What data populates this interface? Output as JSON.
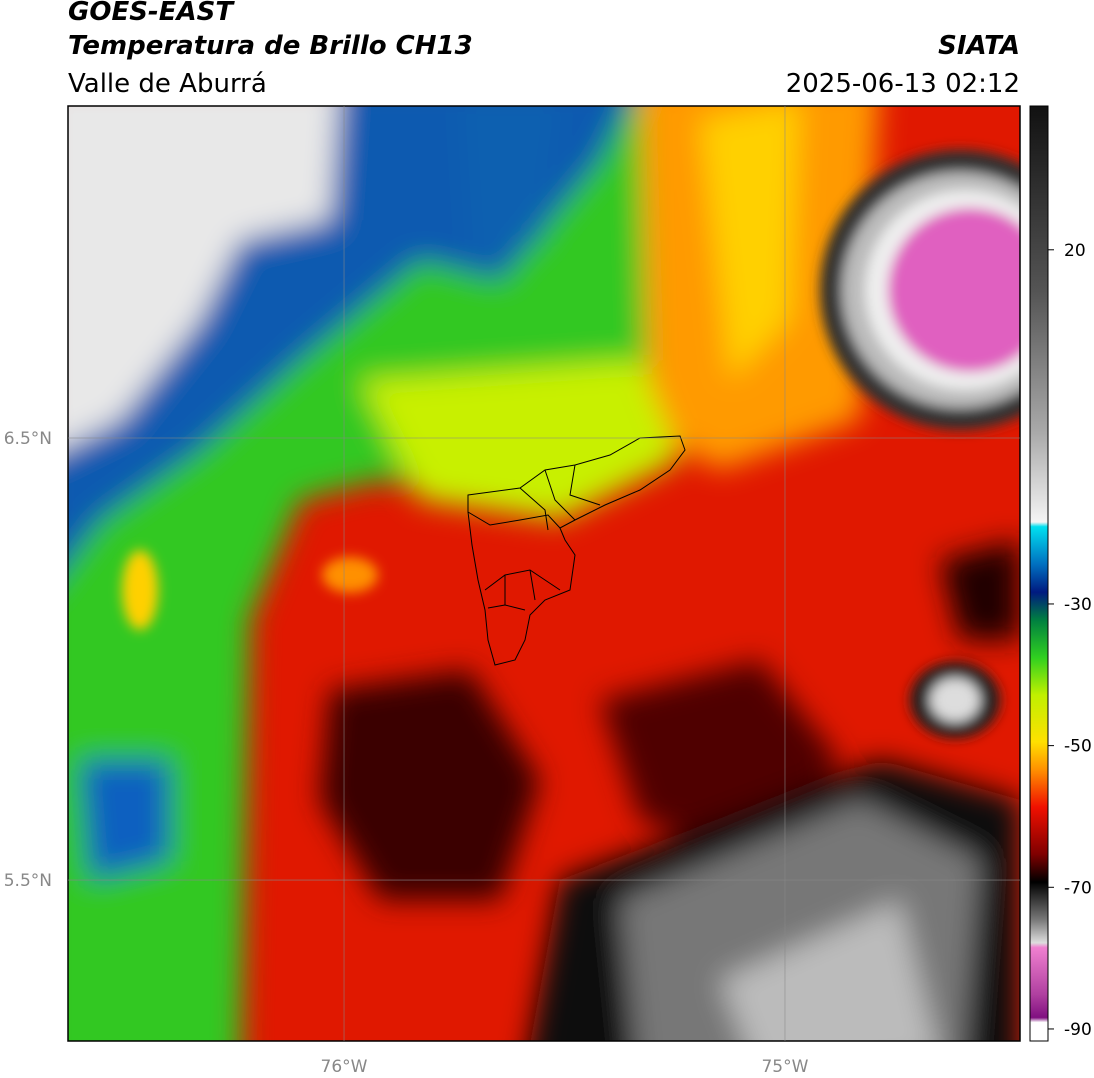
{
  "header": {
    "title": "GOES-EAST",
    "subtitle": "Temperatura de Brillo CH13",
    "region": "Valle de Aburrá",
    "agency": "SIATA",
    "timestamp": "2025-06-13 02:12"
  },
  "map": {
    "xlim": [
      -76.626,
      -74.467
    ],
    "ylim": [
      5.136,
      7.251
    ],
    "lat_ticks": [
      {
        "value": 6.5,
        "label": "6.5°N"
      },
      {
        "value": 5.5,
        "label": "5.5°N"
      }
    ],
    "lon_ticks": [
      {
        "value": -76,
        "label": "76°W"
      },
      {
        "value": -75,
        "label": "75°W"
      }
    ]
  },
  "colorbar": {
    "lim": [
      -91.7,
      40.3
    ],
    "ticks": [
      20,
      -30,
      -50,
      -70,
      -90
    ]
  }
}
